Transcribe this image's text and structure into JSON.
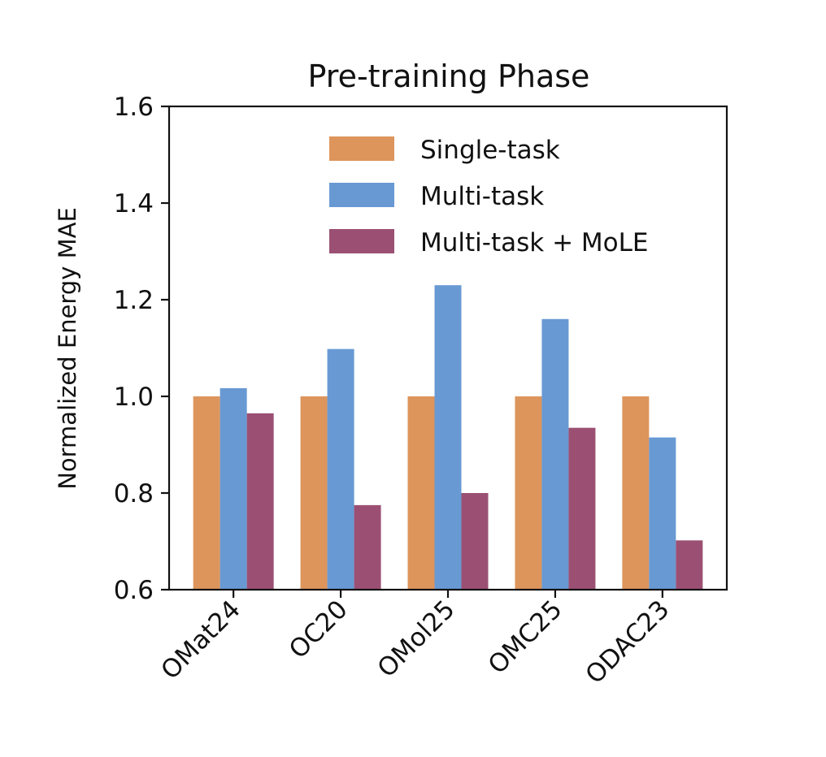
{
  "chart_data": {
    "type": "bar",
    "title": "Pre-training Phase",
    "xlabel": "",
    "ylabel": "Normalized Energy MAE",
    "ylim": [
      0.6,
      1.6
    ],
    "yticks": [
      "0.6",
      "0.8",
      "1.0",
      "1.2",
      "1.4",
      "1.6"
    ],
    "categories": [
      "OMat24",
      "OC20",
      "OMol25",
      "OMC25",
      "ODAC23"
    ],
    "series": [
      {
        "name": "Single-task",
        "color": "#DD955C",
        "values": [
          1.0,
          1.0,
          1.0,
          1.0,
          1.0
        ]
      },
      {
        "name": "Multi-task",
        "color": "#6899D3",
        "values": [
          1.017,
          1.098,
          1.23,
          1.16,
          0.915
        ]
      },
      {
        "name": "Multi-task + MoLE",
        "color": "#9B5073",
        "values": [
          0.965,
          0.775,
          0.8,
          0.935,
          0.702
        ]
      }
    ],
    "legend_position": "top-right",
    "grid": false
  }
}
